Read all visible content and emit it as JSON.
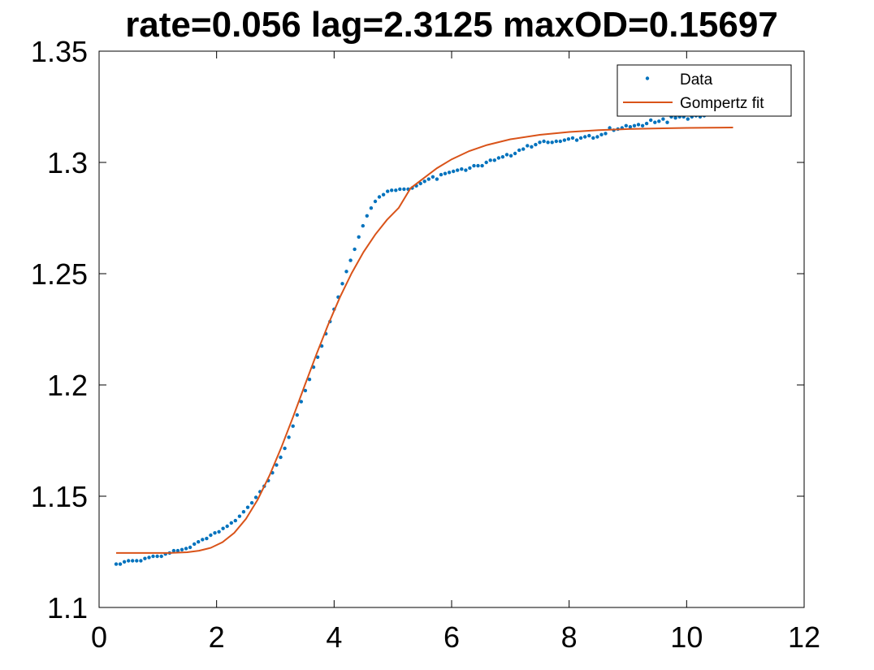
{
  "chart_data": {
    "type": "scatter",
    "title": "rate=0.056 lag=2.3125 maxOD=0.15697",
    "xlabel": "",
    "ylabel": "",
    "xlim": [
      0,
      12
    ],
    "ylim": [
      1.1,
      1.35
    ],
    "xticks": [
      0,
      2,
      4,
      6,
      8,
      10,
      12
    ],
    "xtick_labels": [
      "0",
      "2",
      "4",
      "6",
      "8",
      "10",
      "12"
    ],
    "yticks": [
      1.1,
      1.15,
      1.2,
      1.25,
      1.3,
      1.35
    ],
    "ytick_labels": [
      "1.1",
      "1.15",
      "1.2",
      "1.25",
      "1.3",
      "1.35"
    ],
    "grid": false,
    "legend": {
      "placement": "top-right",
      "entries": [
        {
          "label": "Data",
          "marker": "dot",
          "color": "#0072BD"
        },
        {
          "label": "Gompertz fit",
          "marker": "line",
          "color": "#D95319"
        }
      ]
    },
    "series": [
      {
        "name": "Data",
        "style": "dots",
        "color": "#0072BD",
        "points": [
          [
            0.29,
            1.1195
          ],
          [
            0.36,
            1.1195
          ],
          [
            0.43,
            1.1205
          ],
          [
            0.5,
            1.121
          ],
          [
            0.57,
            1.121
          ],
          [
            0.64,
            1.121
          ],
          [
            0.71,
            1.121
          ],
          [
            0.78,
            1.122
          ],
          [
            0.85,
            1.1225
          ],
          [
            0.92,
            1.123
          ],
          [
            0.99,
            1.123
          ],
          [
            1.06,
            1.123
          ],
          [
            1.13,
            1.124
          ],
          [
            1.2,
            1.1245
          ],
          [
            1.27,
            1.1255
          ],
          [
            1.34,
            1.1255
          ],
          [
            1.41,
            1.126
          ],
          [
            1.48,
            1.1265
          ],
          [
            1.55,
            1.127
          ],
          [
            1.62,
            1.1285
          ],
          [
            1.69,
            1.1295
          ],
          [
            1.76,
            1.1305
          ],
          [
            1.83,
            1.131
          ],
          [
            1.9,
            1.1325
          ],
          [
            1.97,
            1.1335
          ],
          [
            2.04,
            1.134
          ],
          [
            2.11,
            1.1355
          ],
          [
            2.18,
            1.1365
          ],
          [
            2.25,
            1.138
          ],
          [
            2.32,
            1.139
          ],
          [
            2.39,
            1.141
          ],
          [
            2.46,
            1.143
          ],
          [
            2.53,
            1.145
          ],
          [
            2.6,
            1.147
          ],
          [
            2.67,
            1.1495
          ],
          [
            2.74,
            1.152
          ],
          [
            2.81,
            1.1545
          ],
          [
            2.88,
            1.157
          ],
          [
            2.95,
            1.1605
          ],
          [
            3.02,
            1.164
          ],
          [
            3.09,
            1.1675
          ],
          [
            3.16,
            1.1715
          ],
          [
            3.23,
            1.1765
          ],
          [
            3.3,
            1.1815
          ],
          [
            3.37,
            1.1865
          ],
          [
            3.44,
            1.1925
          ],
          [
            3.51,
            1.1975
          ],
          [
            3.58,
            1.2025
          ],
          [
            3.65,
            1.208
          ],
          [
            3.72,
            1.2125
          ],
          [
            3.79,
            1.2175
          ],
          [
            3.86,
            1.223
          ],
          [
            3.93,
            1.2285
          ],
          [
            4.0,
            1.234
          ],
          [
            4.07,
            1.2395
          ],
          [
            4.14,
            1.2455
          ],
          [
            4.21,
            1.251
          ],
          [
            4.28,
            1.256
          ],
          [
            4.35,
            1.261
          ],
          [
            4.42,
            1.2665
          ],
          [
            4.49,
            1.2715
          ],
          [
            4.56,
            1.276
          ],
          [
            4.63,
            1.2795
          ],
          [
            4.7,
            1.2825
          ],
          [
            4.77,
            1.2845
          ],
          [
            4.84,
            1.2855
          ],
          [
            4.91,
            1.287
          ],
          [
            4.98,
            1.2875
          ],
          [
            5.05,
            1.2875
          ],
          [
            5.12,
            1.288
          ],
          [
            5.19,
            1.288
          ],
          [
            5.26,
            1.288
          ],
          [
            5.33,
            1.2885
          ],
          [
            5.4,
            1.2895
          ],
          [
            5.47,
            1.2905
          ],
          [
            5.54,
            1.2915
          ],
          [
            5.61,
            1.2925
          ],
          [
            5.68,
            1.2935
          ],
          [
            5.75,
            1.2925
          ],
          [
            5.82,
            1.2945
          ],
          [
            5.89,
            1.295
          ],
          [
            5.96,
            1.2955
          ],
          [
            6.03,
            1.296
          ],
          [
            6.1,
            1.2965
          ],
          [
            6.17,
            1.297
          ],
          [
            6.24,
            1.2965
          ],
          [
            6.31,
            1.2975
          ],
          [
            6.38,
            1.2985
          ],
          [
            6.45,
            1.2985
          ],
          [
            6.52,
            1.2985
          ],
          [
            6.59,
            1.3
          ],
          [
            6.66,
            1.301
          ],
          [
            6.73,
            1.301
          ],
          [
            6.8,
            1.302
          ],
          [
            6.87,
            1.3025
          ],
          [
            6.94,
            1.3035
          ],
          [
            7.01,
            1.303
          ],
          [
            7.08,
            1.304
          ],
          [
            7.15,
            1.3055
          ],
          [
            7.22,
            1.306
          ],
          [
            7.29,
            1.3075
          ],
          [
            7.36,
            1.307
          ],
          [
            7.43,
            1.308
          ],
          [
            7.5,
            1.309
          ],
          [
            7.57,
            1.3095
          ],
          [
            7.64,
            1.309
          ],
          [
            7.71,
            1.309
          ],
          [
            7.78,
            1.3095
          ],
          [
            7.85,
            1.3095
          ],
          [
            7.92,
            1.31
          ],
          [
            7.99,
            1.3105
          ],
          [
            8.06,
            1.311
          ],
          [
            8.13,
            1.31
          ],
          [
            8.2,
            1.311
          ],
          [
            8.27,
            1.3115
          ],
          [
            8.34,
            1.312
          ],
          [
            8.41,
            1.311
          ],
          [
            8.48,
            1.3115
          ],
          [
            8.55,
            1.3125
          ],
          [
            8.62,
            1.313
          ],
          [
            8.69,
            1.3155
          ],
          [
            8.76,
            1.3145
          ],
          [
            8.83,
            1.315
          ],
          [
            8.9,
            1.3155
          ],
          [
            8.97,
            1.3165
          ],
          [
            9.04,
            1.316
          ],
          [
            9.11,
            1.3165
          ],
          [
            9.18,
            1.317
          ],
          [
            9.25,
            1.3165
          ],
          [
            9.32,
            1.3175
          ],
          [
            9.39,
            1.319
          ],
          [
            9.46,
            1.318
          ],
          [
            9.53,
            1.3185
          ],
          [
            9.6,
            1.3195
          ],
          [
            9.67,
            1.318
          ],
          [
            9.74,
            1.3205
          ],
          [
            9.81,
            1.32
          ],
          [
            9.88,
            1.3205
          ],
          [
            9.95,
            1.3205
          ],
          [
            10.02,
            1.3195
          ],
          [
            10.09,
            1.3205
          ],
          [
            10.16,
            1.321
          ],
          [
            10.23,
            1.3205
          ],
          [
            10.3,
            1.321
          ],
          [
            10.37,
            1.3215
          ],
          [
            10.44,
            1.322
          ],
          [
            10.51,
            1.3215
          ],
          [
            10.58,
            1.3225
          ],
          [
            10.65,
            1.322
          ],
          [
            10.72,
            1.3225
          ],
          [
            10.79,
            1.323
          ]
        ]
      },
      {
        "name": "Gompertz fit",
        "style": "line",
        "color": "#D95319",
        "points": [
          [
            0.29,
            1.1245
          ],
          [
            0.8,
            1.1245
          ],
          [
            1.2,
            1.1245
          ],
          [
            1.5,
            1.1248
          ],
          [
            1.7,
            1.1255
          ],
          [
            1.9,
            1.1268
          ],
          [
            2.1,
            1.1293
          ],
          [
            2.3,
            1.1335
          ],
          [
            2.5,
            1.1398
          ],
          [
            2.7,
            1.1485
          ],
          [
            2.9,
            1.1593
          ],
          [
            3.1,
            1.1718
          ],
          [
            3.3,
            1.1855
          ],
          [
            3.5,
            1.1998
          ],
          [
            3.7,
            1.2138
          ],
          [
            3.9,
            1.2272
          ],
          [
            4.1,
            1.2395
          ],
          [
            4.3,
            1.2503
          ],
          [
            4.5,
            1.2597
          ],
          [
            4.7,
            1.2676
          ],
          [
            4.9,
            1.2742
          ],
          [
            5.1,
            1.2796
          ],
          [
            5.3,
            1.2884
          ],
          [
            5.5,
            1.2924
          ],
          [
            5.75,
            1.2974
          ],
          [
            6.0,
            1.3014
          ],
          [
            6.3,
            1.3051
          ],
          [
            6.6,
            1.3078
          ],
          [
            7.0,
            1.3104
          ],
          [
            7.5,
            1.3124
          ],
          [
            8.0,
            1.3137
          ],
          [
            8.5,
            1.3145
          ],
          [
            9.0,
            1.315
          ],
          [
            9.5,
            1.3153
          ],
          [
            10.0,
            1.3155
          ],
          [
            10.4,
            1.3156
          ],
          [
            10.79,
            1.3157
          ]
        ]
      }
    ]
  }
}
